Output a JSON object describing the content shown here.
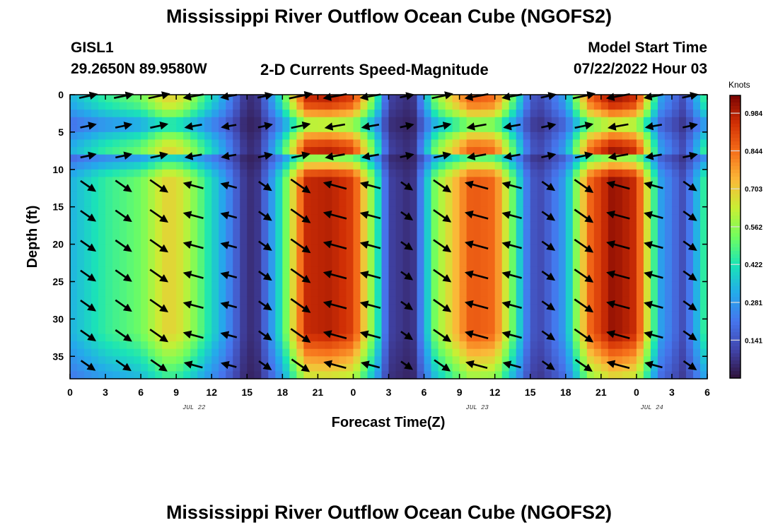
{
  "header": {
    "title": "Mississippi River Outflow Ocean Cube (NGOFS2)",
    "station_id": "GISL1",
    "station_coords": "29.2650N  89.9580W",
    "plot_subtitle": "2-D Currents Speed-Magnitude",
    "model_start_label": "Model Start Time",
    "model_start_value": "07/22/2022 Hour 03",
    "bottom_title": "Mississippi River Outflow Ocean Cube (NGOFS2)"
  },
  "chart_data": {
    "type": "heatmap",
    "title": "2-D Currents Speed-Magnitude",
    "xlabel": "Forecast Time(Z)",
    "ylabel": "Depth (ft)",
    "x_ticks": [
      "0",
      "3",
      "6",
      "9",
      "12",
      "15",
      "18",
      "21",
      "0",
      "3",
      "6",
      "9",
      "12",
      "15",
      "18",
      "21",
      "0",
      "3",
      "6"
    ],
    "x_range_hours": [
      0,
      54
    ],
    "date_labels": [
      {
        "text": "JUL 22",
        "hour": 10.5
      },
      {
        "text": "JUL 23",
        "hour": 34.5
      },
      {
        "text": "JUL 24",
        "hour": 49.3
      }
    ],
    "y_ticks": [
      "0",
      "5",
      "10",
      "15",
      "20",
      "25",
      "30",
      "35"
    ],
    "y_range_ft": [
      0,
      38
    ],
    "y_inverted": true,
    "colorbar": {
      "units": "Knots",
      "ticks": [
        "0.984",
        "0.844",
        "0.703",
        "0.562",
        "0.422",
        "0.281",
        "0.141"
      ],
      "tick_values": [
        0.984,
        0.844,
        0.703,
        0.562,
        0.422,
        0.281,
        0.141
      ],
      "min": 0.0,
      "max": 1.05,
      "colormap": "turbo"
    },
    "speed_profile": {
      "comment": "max speed (knots) at each hour; minima at slack water",
      "hours": [
        0,
        3,
        6,
        8,
        9,
        10,
        13,
        15,
        16,
        18,
        20,
        22,
        24,
        26,
        27,
        29,
        31,
        34,
        36,
        38,
        39,
        40,
        42,
        44,
        46,
        48,
        50,
        52,
        54
      ],
      "speeds": [
        0.33,
        0.45,
        0.52,
        0.68,
        0.68,
        0.6,
        0.3,
        0.05,
        0.08,
        0.45,
        0.96,
        0.98,
        0.92,
        0.45,
        0.1,
        0.05,
        0.55,
        0.88,
        0.85,
        0.4,
        0.15,
        0.12,
        0.3,
        0.85,
        1.02,
        0.95,
        0.3,
        0.12,
        0.5
      ]
    },
    "arrow_hours": [
      1.5,
      4.5,
      7.5,
      10.5,
      13.5,
      16.5,
      19.5,
      22.5,
      25.5,
      28.5,
      31.5,
      34.5,
      37.5,
      40.5,
      43.5,
      46.5,
      49.5,
      52.5
    ],
    "arrow_depths_ft": [
      0,
      4,
      8,
      12,
      16,
      20,
      24,
      28,
      32,
      36
    ]
  }
}
